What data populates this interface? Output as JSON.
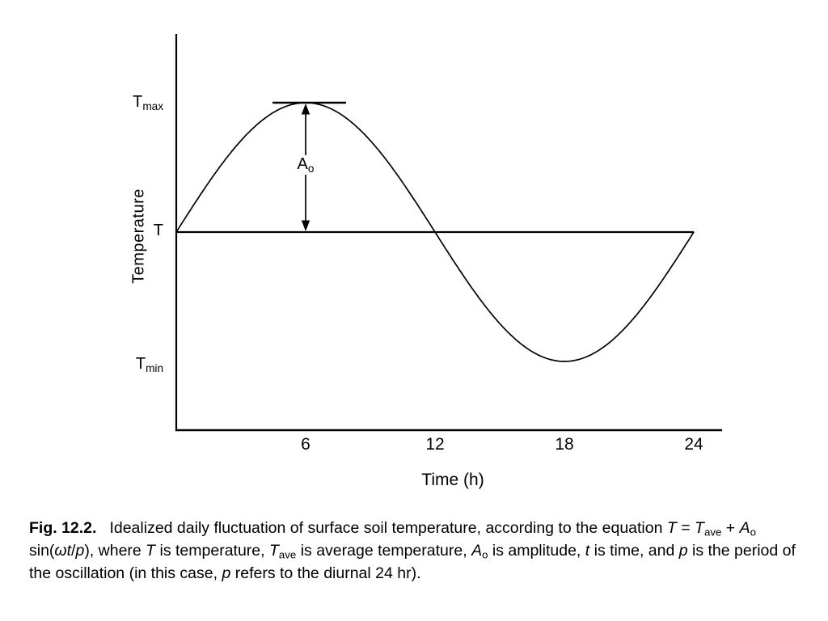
{
  "figure": {
    "caption_label": "Fig. 12.2.",
    "caption_rich": [
      {
        "t": "Idealized daily fluctuation of surface soil temperature, according to the equation "
      },
      {
        "t": "T",
        "s": "i"
      },
      {
        "t": " = "
      },
      {
        "t": "T",
        "s": "i"
      },
      {
        "t": "ave",
        "s": "sub"
      },
      {
        "t": " + "
      },
      {
        "t": "A",
        "s": "i"
      },
      {
        "t": "o",
        "s": "sub"
      },
      {
        "t": " sin("
      },
      {
        "t": "ω",
        "s": "i"
      },
      {
        "t": "t",
        "s": "i"
      },
      {
        "t": "/"
      },
      {
        "t": "p",
        "s": "i"
      },
      {
        "t": "), where "
      },
      {
        "t": "T",
        "s": "i"
      },
      {
        "t": " is temperature, "
      },
      {
        "t": "T",
        "s": "i"
      },
      {
        "t": "ave",
        "s": "sub"
      },
      {
        "t": " is average temperature, "
      },
      {
        "t": "A",
        "s": "i"
      },
      {
        "t": "o",
        "s": "sub"
      },
      {
        "t": " is amplitude, "
      },
      {
        "t": "t",
        "s": "i"
      },
      {
        "t": " is time, and "
      },
      {
        "t": "p",
        "s": "i"
      },
      {
        "t": " is the period of the oscillation (in this case, "
      },
      {
        "t": "p",
        "s": "i"
      },
      {
        "t": " refers to the diurnal 24 hr)."
      }
    ]
  },
  "chart_data": {
    "type": "line",
    "title": "",
    "xlabel": "Time (h)",
    "ylabel": "Temperature",
    "xlim": [
      0,
      24
    ],
    "x_ticks_h": [
      6,
      12,
      18,
      24
    ],
    "x_tick_labels": [
      "6",
      "12",
      "18",
      "24"
    ],
    "y_tick_rich": {
      "tmax": [
        {
          "t": "T"
        },
        {
          "t": "max",
          "s": "sub"
        }
      ],
      "tave": [
        {
          "t": "T"
        }
      ],
      "tmin": [
        {
          "t": "T"
        },
        {
          "t": "min",
          "s": "sub"
        }
      ]
    },
    "amplitude_label_rich": [
      {
        "t": "A"
      },
      {
        "t": "o",
        "s": "sub"
      }
    ],
    "equation": "T = Tave + Ao sin(ωt/p)",
    "period_h": 24,
    "mean_normalized": 0,
    "amplitude_normalized": 1,
    "grid": false,
    "legend": false,
    "series": [
      {
        "name": "surface-soil-temperature",
        "x": [
          0,
          3,
          6,
          9,
          12,
          15,
          18,
          21,
          24
        ],
        "y": [
          0,
          0.707,
          1,
          0.707,
          0,
          -0.707,
          -1,
          -0.707,
          0
        ]
      }
    ],
    "annotations": [
      {
        "name": "amplitude-arrow",
        "from": "T_ave",
        "to": "T_max",
        "at_hour": 6,
        "label": "Ao"
      }
    ]
  },
  "colors": {
    "ink": "#000000",
    "background": "#ffffff"
  }
}
